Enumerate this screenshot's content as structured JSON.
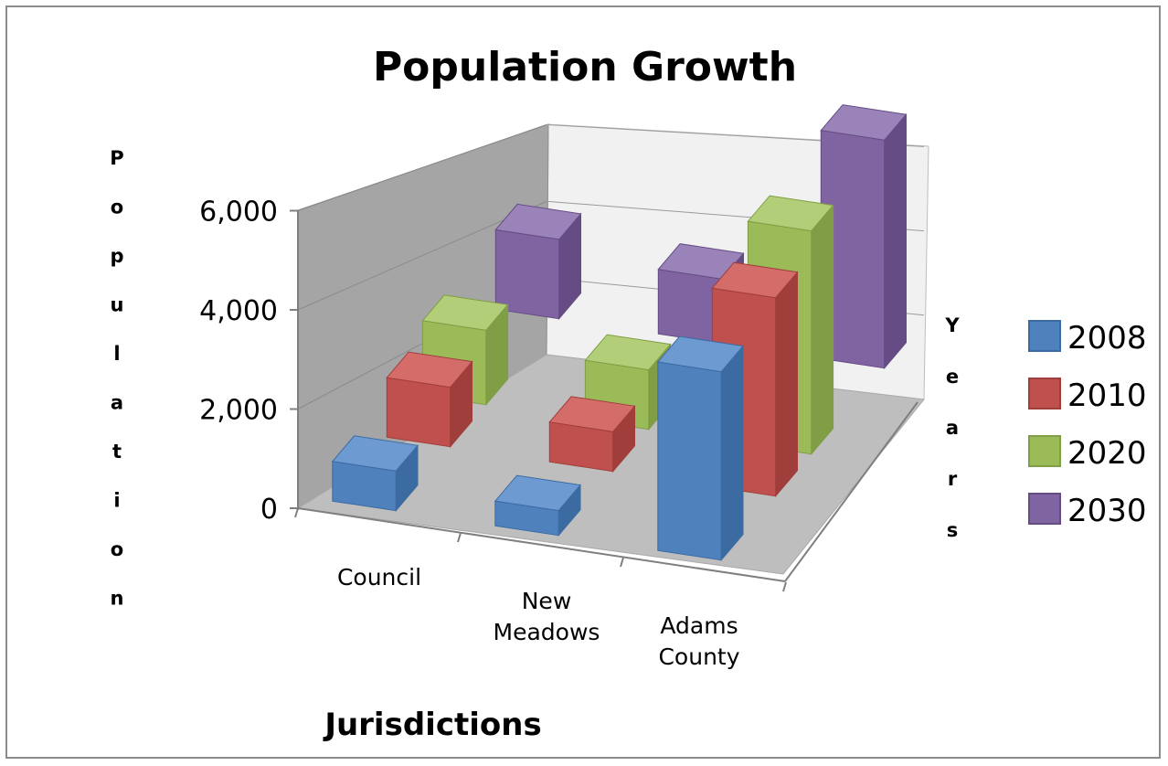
{
  "chart_data": {
    "type": "bar",
    "title": "Population Growth",
    "xlabel": "Jurisdictions",
    "ylabel": "Population",
    "zlabel": "Years",
    "categories": [
      "Council",
      "New Meadows",
      "Adams County"
    ],
    "category_lines": [
      [
        "Council"
      ],
      [
        "New",
        "Meadows"
      ],
      [
        "Adams",
        "County"
      ]
    ],
    "y_ticks": [
      "0",
      "2,000",
      "4,000",
      "6,000"
    ],
    "ylim": [
      0,
      6000
    ],
    "grid": true,
    "legend_position": "right",
    "series": [
      {
        "name": "2008",
        "values": [
          800,
          500,
          3800
        ]
      },
      {
        "name": "2010",
        "values": [
          1200,
          800,
          4000
        ]
      },
      {
        "name": "2020",
        "values": [
          1500,
          1200,
          4500
        ]
      },
      {
        "name": "2030",
        "values": [
          1600,
          1300,
          4600
        ]
      }
    ],
    "colors": {
      "2008": [
        "#4f81bd",
        "#3c6ba2",
        "#6d9ad0"
      ],
      "2010": [
        "#c0504d",
        "#a03e3b",
        "#d46d69"
      ],
      "2020": [
        "#9bbb59",
        "#7f9e45",
        "#b2ce78"
      ],
      "2030": [
        "#8064a2",
        "#654c84",
        "#9a83b9"
      ]
    }
  }
}
